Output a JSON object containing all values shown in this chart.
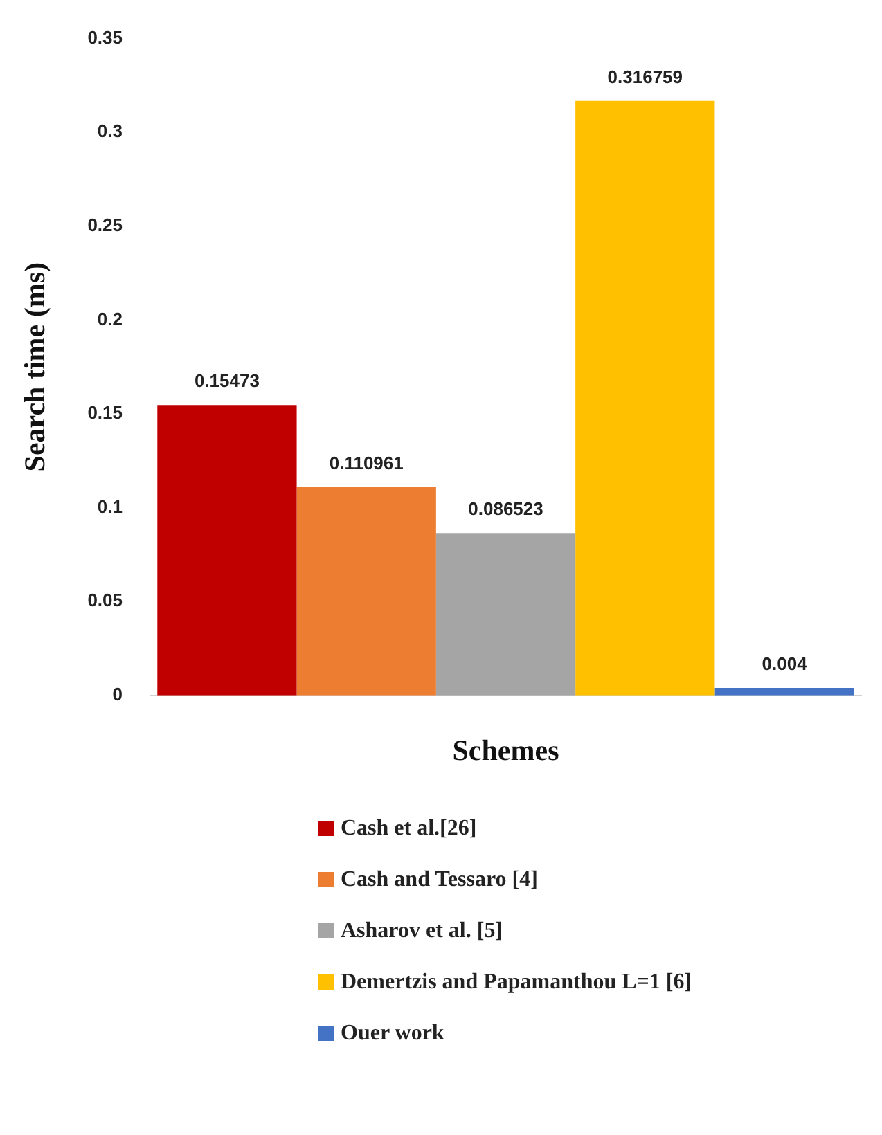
{
  "chart_data": {
    "type": "bar",
    "xlabel": "Schemes",
    "ylabel": "Search time (ms)",
    "categories": [
      null
    ],
    "series": [
      {
        "name": "Cash et al.[26]",
        "color": "#c00000",
        "values": [
          0.15473
        ]
      },
      {
        "name": "Cash and Tessaro [4]",
        "color": "#ed7d31",
        "values": [
          0.110961
        ]
      },
      {
        "name": "Asharov et al. [5]",
        "color": "#a5a5a5",
        "values": [
          0.086523
        ]
      },
      {
        "name": "Demertzis and Papamanthou L=1 [6]",
        "color": "#ffc000",
        "values": [
          0.316759
        ]
      },
      {
        "name": "Ouer work",
        "color": "#4472c4",
        "values": [
          0.004
        ]
      }
    ],
    "ylim": [
      0,
      0.35
    ],
    "yticks": [
      0,
      0.05,
      0.1,
      0.15,
      0.2,
      0.25,
      0.3,
      0.35
    ],
    "grid": false,
    "data_labels": true,
    "legend": "bottom"
  }
}
